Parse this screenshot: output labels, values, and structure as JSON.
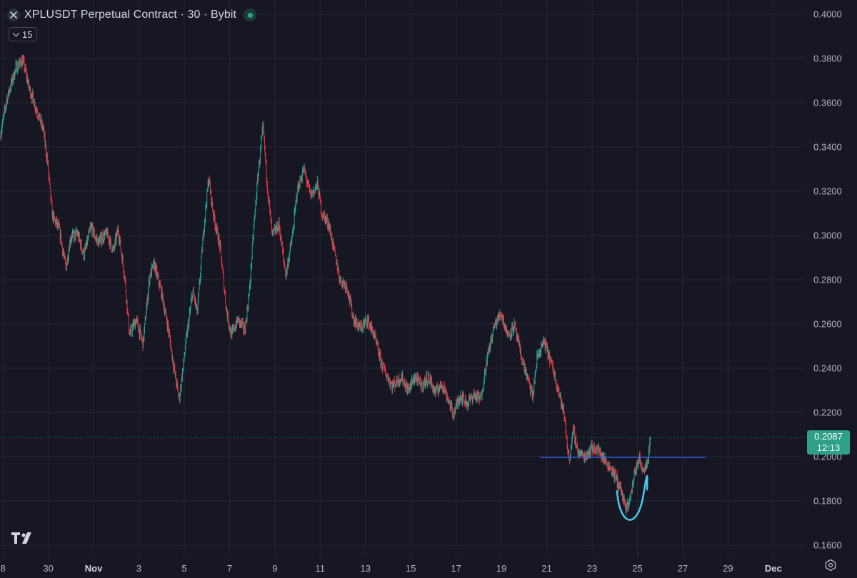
{
  "header": {
    "symbol_title": "XPLUSDT Perpetual Contract · 30 · Bybit",
    "indicator_count": "15"
  },
  "price_tag": {
    "price": "0.2087",
    "countdown": "12:13"
  },
  "colors": {
    "background": "#161722",
    "up": "#22ab94",
    "down": "#f23645",
    "support_line": "#2962ff",
    "pattern_arc": "#4cc3e6",
    "last_price_line": "#22ab94"
  },
  "icons": {
    "logo": "tradingview-logo-icon",
    "settings": "settings-gear-icon",
    "symbol": "symbol-logo-icon"
  },
  "chart_data": {
    "type": "candlestick",
    "y_axis": {
      "range": [
        0.155,
        0.405
      ],
      "ticks": [
        "0.4000",
        "0.3800",
        "0.3600",
        "0.3400",
        "0.3200",
        "0.3000",
        "0.2800",
        "0.2600",
        "0.2400",
        "0.2200",
        "0.2000",
        "0.1800",
        "0.1600"
      ]
    },
    "x_axis": {
      "ticks": [
        {
          "label": "8",
          "day": 28
        },
        {
          "label": "30",
          "day": 30
        },
        {
          "label": "Nov",
          "day": 32,
          "bold": true
        },
        {
          "label": "3",
          "day": 34
        },
        {
          "label": "5",
          "day": 36
        },
        {
          "label": "7",
          "day": 38
        },
        {
          "label": "9",
          "day": 40
        },
        {
          "label": "11",
          "day": 42
        },
        {
          "label": "13",
          "day": 44
        },
        {
          "label": "15",
          "day": 46
        },
        {
          "label": "17",
          "day": 48
        },
        {
          "label": "19",
          "day": 50
        },
        {
          "label": "21",
          "day": 52
        },
        {
          "label": "23",
          "day": 54
        },
        {
          "label": "25",
          "day": 56
        },
        {
          "label": "27",
          "day": 58
        },
        {
          "label": "29",
          "day": 60
        },
        {
          "label": "Dec",
          "day": 62,
          "bold": true
        }
      ],
      "day_range": [
        27.87,
        63.36
      ]
    },
    "last_price": 0.2087,
    "support_level": {
      "price": 0.1997,
      "from_day": 51.7,
      "to_day": 59.0
    },
    "price_path": [
      [
        27.9,
        0.345
      ],
      [
        28.2,
        0.362
      ],
      [
        28.6,
        0.376
      ],
      [
        28.9,
        0.379
      ],
      [
        29.2,
        0.366
      ],
      [
        29.5,
        0.357
      ],
      [
        29.8,
        0.348
      ],
      [
        30.0,
        0.332
      ],
      [
        30.2,
        0.309
      ],
      [
        30.5,
        0.303
      ],
      [
        30.8,
        0.285
      ],
      [
        31.0,
        0.299
      ],
      [
        31.3,
        0.301
      ],
      [
        31.6,
        0.291
      ],
      [
        31.9,
        0.304
      ],
      [
        32.2,
        0.297
      ],
      [
        32.6,
        0.301
      ],
      [
        32.9,
        0.293
      ],
      [
        33.1,
        0.303
      ],
      [
        33.4,
        0.281
      ],
      [
        33.6,
        0.255
      ],
      [
        33.9,
        0.262
      ],
      [
        34.2,
        0.251
      ],
      [
        34.5,
        0.282
      ],
      [
        34.7,
        0.287
      ],
      [
        35.0,
        0.275
      ],
      [
        35.3,
        0.259
      ],
      [
        35.6,
        0.238
      ],
      [
        35.8,
        0.226
      ],
      [
        36.1,
        0.252
      ],
      [
        36.4,
        0.275
      ],
      [
        36.6,
        0.265
      ],
      [
        36.9,
        0.305
      ],
      [
        37.1,
        0.326
      ],
      [
        37.3,
        0.31
      ],
      [
        37.6,
        0.295
      ],
      [
        37.9,
        0.265
      ],
      [
        38.1,
        0.255
      ],
      [
        38.4,
        0.262
      ],
      [
        38.7,
        0.257
      ],
      [
        38.9,
        0.275
      ],
      [
        39.1,
        0.305
      ],
      [
        39.3,
        0.33
      ],
      [
        39.5,
        0.349
      ],
      [
        39.7,
        0.321
      ],
      [
        39.9,
        0.3
      ],
      [
        40.2,
        0.305
      ],
      [
        40.5,
        0.282
      ],
      [
        40.8,
        0.3
      ],
      [
        41.0,
        0.32
      ],
      [
        41.3,
        0.33
      ],
      [
        41.6,
        0.318
      ],
      [
        41.9,
        0.323
      ],
      [
        42.1,
        0.31
      ],
      [
        42.4,
        0.305
      ],
      [
        42.7,
        0.29
      ],
      [
        42.9,
        0.28
      ],
      [
        43.2,
        0.277
      ],
      [
        43.5,
        0.262
      ],
      [
        43.8,
        0.258
      ],
      [
        44.1,
        0.262
      ],
      [
        44.4,
        0.255
      ],
      [
        44.7,
        0.243
      ],
      [
        44.9,
        0.238
      ],
      [
        45.2,
        0.232
      ],
      [
        45.6,
        0.236
      ],
      [
        45.9,
        0.23
      ],
      [
        46.2,
        0.236
      ],
      [
        46.5,
        0.232
      ],
      [
        46.8,
        0.236
      ],
      [
        47.1,
        0.229
      ],
      [
        47.4,
        0.233
      ],
      [
        47.6,
        0.228
      ],
      [
        47.9,
        0.219
      ],
      [
        48.2,
        0.228
      ],
      [
        48.5,
        0.224
      ],
      [
        48.8,
        0.228
      ],
      [
        49.1,
        0.226
      ],
      [
        49.4,
        0.245
      ],
      [
        49.7,
        0.259
      ],
      [
        50.0,
        0.265
      ],
      [
        50.3,
        0.255
      ],
      [
        50.6,
        0.259
      ],
      [
        50.9,
        0.245
      ],
      [
        51.1,
        0.238
      ],
      [
        51.4,
        0.227
      ],
      [
        51.6,
        0.245
      ],
      [
        51.9,
        0.252
      ],
      [
        52.2,
        0.243
      ],
      [
        52.5,
        0.232
      ],
      [
        52.8,
        0.218
      ],
      [
        53.0,
        0.198
      ],
      [
        53.2,
        0.212
      ],
      [
        53.4,
        0.202
      ],
      [
        53.7,
        0.2
      ],
      [
        54.0,
        0.204
      ],
      [
        54.3,
        0.203
      ],
      [
        54.6,
        0.198
      ],
      [
        54.9,
        0.194
      ],
      [
        55.1,
        0.19
      ],
      [
        55.3,
        0.185
      ],
      [
        55.5,
        0.176
      ],
      [
        55.7,
        0.181
      ],
      [
        55.9,
        0.193
      ],
      [
        56.1,
        0.199
      ],
      [
        56.3,
        0.194
      ],
      [
        56.5,
        0.2
      ],
      [
        56.6,
        0.2087
      ]
    ]
  }
}
